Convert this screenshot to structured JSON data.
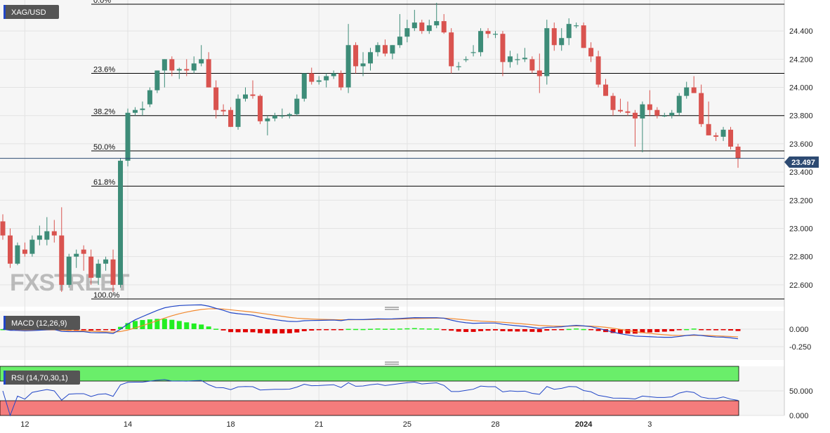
{
  "symbol": "XAG/USD",
  "price_tag": "23.497",
  "watermark": "FXSTREET",
  "colors": {
    "up": "#3d8c78",
    "down": "#d9534f",
    "bg": "#f6f6f6",
    "macd_line": "#2146c7",
    "signal_line": "#f28a30",
    "hist_pos": "#22ee22",
    "hist_neg": "#e00000",
    "rsi_line": "#2146c7",
    "overbought": "#6aee6a",
    "oversold": "#f47c7c",
    "price_tag_bg": "#2d4a72"
  },
  "chart_data": [
    {
      "type": "candlestick",
      "title": "XAG/USD",
      "ylim": [
        22.45,
        24.6
      ],
      "yticks": [
        "24.400",
        "24.200",
        "24.000",
        "23.800",
        "23.600",
        "23.400",
        "23.200",
        "23.000",
        "22.800",
        "22.600"
      ],
      "xticks": [
        "12",
        "14",
        "18",
        "21",
        "25",
        "28",
        "2024",
        "3"
      ],
      "current_price": 23.497,
      "fibonacci": [
        {
          "label": "0.0%",
          "value": 24.59
        },
        {
          "label": "23.6%",
          "value": 24.1
        },
        {
          "label": "38.2%",
          "value": 23.8
        },
        {
          "label": "50.0%",
          "value": 23.55
        },
        {
          "label": "61.8%",
          "value": 23.3
        },
        {
          "label": "100.0%",
          "value": 22.5
        }
      ],
      "candles": [
        [
          23.05,
          23.1,
          22.92,
          22.95
        ],
        [
          22.95,
          23.0,
          22.72,
          22.75
        ],
        [
          22.75,
          22.9,
          22.74,
          22.88
        ],
        [
          22.85,
          22.9,
          22.8,
          22.82
        ],
        [
          22.82,
          22.95,
          22.8,
          22.92
        ],
        [
          22.92,
          23.02,
          22.88,
          22.95
        ],
        [
          22.92,
          23.08,
          22.88,
          22.98
        ],
        [
          22.98,
          23.06,
          22.9,
          22.95
        ],
        [
          22.95,
          23.15,
          22.55,
          22.6
        ],
        [
          22.6,
          22.82,
          22.58,
          22.8
        ],
        [
          22.8,
          22.85,
          22.72,
          22.82
        ],
        [
          22.85,
          22.88,
          22.7,
          22.82
        ],
        [
          22.8,
          22.85,
          22.6,
          22.65
        ],
        [
          22.65,
          22.78,
          22.6,
          22.75
        ],
        [
          22.75,
          22.8,
          22.7,
          22.78
        ],
        [
          22.78,
          22.85,
          22.55,
          22.6
        ],
        [
          22.6,
          23.5,
          22.58,
          23.48
        ],
        [
          23.48,
          23.85,
          23.44,
          23.82
        ],
        [
          23.82,
          23.86,
          23.8,
          23.84
        ],
        [
          23.84,
          23.9,
          23.8,
          23.85
        ],
        [
          23.88,
          24.0,
          23.86,
          23.98
        ],
        [
          23.98,
          24.12,
          23.96,
          24.12
        ],
        [
          24.12,
          24.2,
          24.0,
          24.2
        ],
        [
          24.2,
          24.22,
          24.08,
          24.12
        ],
        [
          24.12,
          24.14,
          24.06,
          24.13
        ],
        [
          24.13,
          24.2,
          24.08,
          24.12
        ],
        [
          24.12,
          24.22,
          24.1,
          24.17
        ],
        [
          24.17,
          24.3,
          24.15,
          24.2
        ],
        [
          24.2,
          24.25,
          24.0,
          24.0
        ],
        [
          24.0,
          24.05,
          23.78,
          23.84
        ],
        [
          23.84,
          23.88,
          23.8,
          23.83
        ],
        [
          23.84,
          23.86,
          23.72,
          23.72
        ],
        [
          23.72,
          23.95,
          23.7,
          23.92
        ],
        [
          23.92,
          24.0,
          23.9,
          23.95
        ],
        [
          23.95,
          24.05,
          23.92,
          23.94
        ],
        [
          23.94,
          23.95,
          23.74,
          23.76
        ],
        [
          23.76,
          23.8,
          23.66,
          23.78
        ],
        [
          23.78,
          23.82,
          23.76,
          23.8
        ],
        [
          23.8,
          23.85,
          23.78,
          23.8
        ],
        [
          23.8,
          23.82,
          23.78,
          23.81
        ],
        [
          23.81,
          23.95,
          23.8,
          23.92
        ],
        [
          23.92,
          24.1,
          23.9,
          24.1
        ],
        [
          24.1,
          24.14,
          24.02,
          24.04
        ],
        [
          24.04,
          24.08,
          24.02,
          24.05
        ],
        [
          24.05,
          24.1,
          24.0,
          24.08
        ],
        [
          24.08,
          24.12,
          24.06,
          24.1
        ],
        [
          24.1,
          24.12,
          23.98,
          24.0
        ],
        [
          24.0,
          24.45,
          23.96,
          24.3
        ],
        [
          24.3,
          24.32,
          24.1,
          24.15
        ],
        [
          24.15,
          24.25,
          24.08,
          24.17
        ],
        [
          24.17,
          24.28,
          24.12,
          24.25
        ],
        [
          24.25,
          24.32,
          24.22,
          24.3
        ],
        [
          24.3,
          24.34,
          24.22,
          24.24
        ],
        [
          24.24,
          24.3,
          24.2,
          24.3
        ],
        [
          24.3,
          24.52,
          24.28,
          24.36
        ],
        [
          24.36,
          24.48,
          24.32,
          24.42
        ],
        [
          24.42,
          24.55,
          24.4,
          24.46
        ],
        [
          24.46,
          24.48,
          24.38,
          24.4
        ],
        [
          24.4,
          24.48,
          24.38,
          24.44
        ],
        [
          24.44,
          24.6,
          24.42,
          24.47
        ],
        [
          24.47,
          24.52,
          24.38,
          24.39
        ],
        [
          24.39,
          24.42,
          24.1,
          24.15
        ],
        [
          24.15,
          24.18,
          24.12,
          24.15
        ],
        [
          24.2,
          24.22,
          24.18,
          24.2
        ],
        [
          24.25,
          24.3,
          24.22,
          24.25
        ],
        [
          24.25,
          24.42,
          24.22,
          24.4
        ],
        [
          24.4,
          24.42,
          24.35,
          24.38
        ],
        [
          24.38,
          24.4,
          24.35,
          24.38
        ],
        [
          24.38,
          24.4,
          24.08,
          24.18
        ],
        [
          24.18,
          24.26,
          24.14,
          24.22
        ],
        [
          24.2,
          24.24,
          24.16,
          24.2
        ],
        [
          24.2,
          24.28,
          24.18,
          24.21
        ],
        [
          24.2,
          24.22,
          24.1,
          24.12
        ],
        [
          24.12,
          24.24,
          23.96,
          24.08
        ],
        [
          24.08,
          24.48,
          24.02,
          24.42
        ],
        [
          24.42,
          24.46,
          24.26,
          24.3
        ],
        [
          24.3,
          24.42,
          24.26,
          24.35
        ],
        [
          24.35,
          24.49,
          24.3,
          24.45
        ],
        [
          24.44,
          24.46,
          24.42,
          24.44
        ],
        [
          24.44,
          24.46,
          24.28,
          24.28
        ],
        [
          24.28,
          24.32,
          24.18,
          24.22
        ],
        [
          24.22,
          24.26,
          24.0,
          24.02
        ],
        [
          24.02,
          24.06,
          23.94,
          23.94
        ],
        [
          23.94,
          23.96,
          23.8,
          23.84
        ],
        [
          23.84,
          23.92,
          23.82,
          23.83
        ],
        [
          23.83,
          23.9,
          23.8,
          23.82
        ],
        [
          23.82,
          23.84,
          23.58,
          23.78
        ],
        [
          23.78,
          23.9,
          23.54,
          23.88
        ],
        [
          23.88,
          23.98,
          23.8,
          23.84
        ],
        [
          23.84,
          23.86,
          23.78,
          23.8
        ],
        [
          23.8,
          23.82,
          23.79,
          23.8
        ],
        [
          23.8,
          23.84,
          23.78,
          23.82
        ],
        [
          23.82,
          23.96,
          23.8,
          23.94
        ],
        [
          23.94,
          24.04,
          23.92,
          24.0
        ],
        [
          24.0,
          24.08,
          23.96,
          23.96
        ],
        [
          23.96,
          24.02,
          23.72,
          23.74
        ],
        [
          23.74,
          23.9,
          23.66,
          23.66
        ],
        [
          23.66,
          23.68,
          23.62,
          23.65
        ],
        [
          23.65,
          23.72,
          23.62,
          23.7
        ],
        [
          23.7,
          23.72,
          23.56,
          23.58
        ],
        [
          23.58,
          23.6,
          23.43,
          23.497
        ]
      ]
    },
    {
      "type": "line",
      "title": "MACD (12,26,9)",
      "ylim": [
        -0.42,
        0.22
      ],
      "yticks": [
        "0.000",
        "-0.250"
      ]
    },
    {
      "type": "line",
      "title": "RSI (14,70,30,1)",
      "ylim": [
        0,
        100
      ],
      "yticks": [
        "50.000",
        "0.000"
      ],
      "overbought": 70,
      "oversold": 30
    }
  ]
}
